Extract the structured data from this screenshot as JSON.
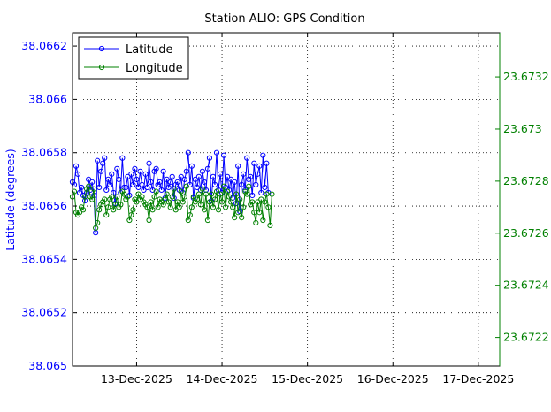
{
  "chart_data": {
    "type": "line",
    "title": "Station ALIO: GPS Condition",
    "ylabel": "Latitude (degrees)",
    "y2label": "",
    "legend_position": "top-left",
    "grid": true,
    "x_range": [
      "2025-12-12 06:00",
      "2025-12-17 06:00"
    ],
    "x_tick_labels": [
      "13-Dec-2025",
      "14-Dec-2025",
      "15-Dec-2025",
      "16-Dec-2025",
      "17-Dec-2025"
    ],
    "left_axis": {
      "range": [
        38.065,
        38.06625
      ],
      "tick_labels": [
        "38.065",
        "38.0652",
        "38.0654",
        "38.0656",
        "38.0658",
        "38.066",
        "38.0662"
      ],
      "color": "#0000ff"
    },
    "right_axis": {
      "range": [
        23.67209,
        23.67337
      ],
      "tick_labels": [
        "23.6722",
        "23.6724",
        "23.6726",
        "23.6728",
        "23.673",
        "23.6732"
      ],
      "color": "#008000"
    },
    "series": [
      {
        "name": "Latitude",
        "axis": "left",
        "color": "#0000ff",
        "start": "2025-12-12 06:00",
        "step_hours": 0.5,
        "values": [
          38.06569,
          38.06568,
          38.06575,
          38.06572,
          38.06565,
          38.06567,
          38.06564,
          38.06562,
          38.06565,
          38.0657,
          38.06566,
          38.06569,
          38.06564,
          38.0655,
          38.06577,
          38.06567,
          38.06573,
          38.06576,
          38.06578,
          38.06566,
          38.0657,
          38.06568,
          38.06572,
          38.06565,
          38.06561,
          38.06574,
          38.0657,
          38.06565,
          38.06578,
          38.06567,
          38.06567,
          38.06571,
          38.06564,
          38.06572,
          38.06568,
          38.06574,
          38.0657,
          38.06567,
          38.06573,
          38.06568,
          38.06566,
          38.06572,
          38.06567,
          38.06576,
          38.06569,
          38.06566,
          38.06573,
          38.06574,
          38.06568,
          38.06569,
          38.06566,
          38.06573,
          38.06563,
          38.0657,
          38.06567,
          38.06569,
          38.06571,
          38.06563,
          38.06568,
          38.06569,
          38.06566,
          38.06571,
          38.06565,
          38.0657,
          38.06573,
          38.0658,
          38.06568,
          38.06575,
          38.06563,
          38.0657,
          38.06567,
          38.06571,
          38.06566,
          38.06573,
          38.06569,
          38.06566,
          38.06574,
          38.06578,
          38.06562,
          38.06571,
          38.06568,
          38.0658,
          38.06566,
          38.06572,
          38.06565,
          38.06579,
          38.06567,
          38.06571,
          38.06566,
          38.0657,
          38.06563,
          38.06569,
          38.06561,
          38.06575,
          38.06558,
          38.06568,
          38.06572,
          38.06566,
          38.06578,
          38.0657,
          38.06571,
          38.06564,
          38.06576,
          38.06568,
          38.06572,
          38.06575,
          38.06565,
          38.06579,
          38.06567,
          38.06576,
          38.06565
        ]
      },
      {
        "name": "Longitude",
        "axis": "right",
        "color": "#008000",
        "start": "2025-12-12 06:00",
        "step_hours": 0.5,
        "values": [
          23.67274,
          23.67276,
          23.67268,
          23.67267,
          23.67268,
          23.6727,
          23.67269,
          23.67274,
          23.67277,
          23.67278,
          23.67274,
          23.67273,
          23.67277,
          23.67262,
          23.67264,
          23.67269,
          23.67271,
          23.67272,
          23.67273,
          23.67267,
          23.6727,
          23.67273,
          23.67274,
          23.67269,
          23.67271,
          23.67274,
          23.6727,
          23.67271,
          23.67276,
          23.67275,
          23.67273,
          23.67274,
          23.67265,
          23.67267,
          23.67269,
          23.67273,
          23.67272,
          23.67275,
          23.67273,
          23.67274,
          23.67272,
          23.67271,
          23.6727,
          23.67265,
          23.67272,
          23.67269,
          23.67274,
          23.67276,
          23.6727,
          23.67273,
          23.67272,
          23.67271,
          23.67273,
          23.67275,
          23.67272,
          23.6727,
          23.67274,
          23.67277,
          23.67269,
          23.67272,
          23.6727,
          23.67276,
          23.67272,
          23.67274,
          23.67278,
          23.67265,
          23.67267,
          23.6727,
          23.67274,
          23.67272,
          23.67273,
          23.67275,
          23.67271,
          23.67277,
          23.67269,
          23.67275,
          23.67265,
          23.67272,
          23.67275,
          23.6727,
          23.67273,
          23.67276,
          23.67269,
          23.67275,
          23.67272,
          23.67278,
          23.6727,
          23.67276,
          23.67274,
          23.67272,
          23.6727,
          23.67266,
          23.67275,
          23.67268,
          23.67273,
          23.67266,
          23.6727,
          23.67276,
          23.67275,
          23.67278,
          23.67271,
          23.67272,
          23.67268,
          23.67264,
          23.67272,
          23.67268,
          23.67273,
          23.67265,
          23.67272,
          23.67275,
          23.6727,
          23.67263,
          23.67275
        ]
      }
    ]
  }
}
